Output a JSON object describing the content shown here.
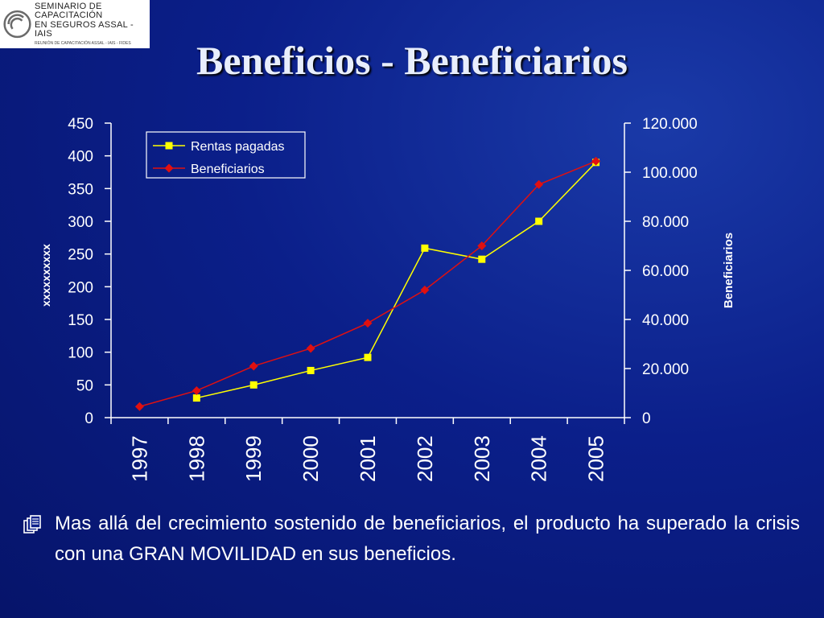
{
  "header": {
    "logo_line1": "SEMINARIO DE CAPACITACIÓN",
    "logo_line2": "EN SEGUROS ASSAL - IAIS",
    "logo_line3": "REUNIÓN DE CAPACITACIÓN ASSAL - IAIS - FIDES"
  },
  "slide": {
    "title": "Beneficios - Beneficiarios",
    "bullet_text": "Mas allá del crecimiento sostenido de beneficiarios, el producto ha superado la crisis con una GRAN MOVILIDAD en sus beneficios.",
    "bullet_icon": "document-stack-icon"
  },
  "colors": {
    "rentas": "#ffff00",
    "beneficiarios": "#e01010",
    "axis": "#ffffff"
  },
  "chart_data": {
    "type": "line",
    "categories": [
      "1997",
      "1998",
      "1999",
      "2000",
      "2001",
      "2002",
      "2003",
      "2004",
      "2005"
    ],
    "series": [
      {
        "name": "Rentas pagadas",
        "axis": "left",
        "values": [
          null,
          30,
          50,
          72,
          92,
          259,
          242,
          300,
          390
        ]
      },
      {
        "name": "Beneficiarios",
        "axis": "right",
        "values": [
          4500,
          11000,
          21000,
          28200,
          38500,
          52000,
          70000,
          95000,
          104500
        ]
      }
    ],
    "ylabel": "xxxxxxxxxx",
    "y2label": "Beneficiarios",
    "ylim": [
      0,
      450
    ],
    "y2lim": [
      0,
      120000
    ],
    "yticks": [
      "0",
      "50",
      "100",
      "150",
      "200",
      "250",
      "300",
      "350",
      "400",
      "450"
    ],
    "y2ticks": [
      "0",
      "20.000",
      "40.000",
      "60.000",
      "80.000",
      "100.000",
      "120.000"
    ],
    "legend": "top-left",
    "grid": false
  }
}
